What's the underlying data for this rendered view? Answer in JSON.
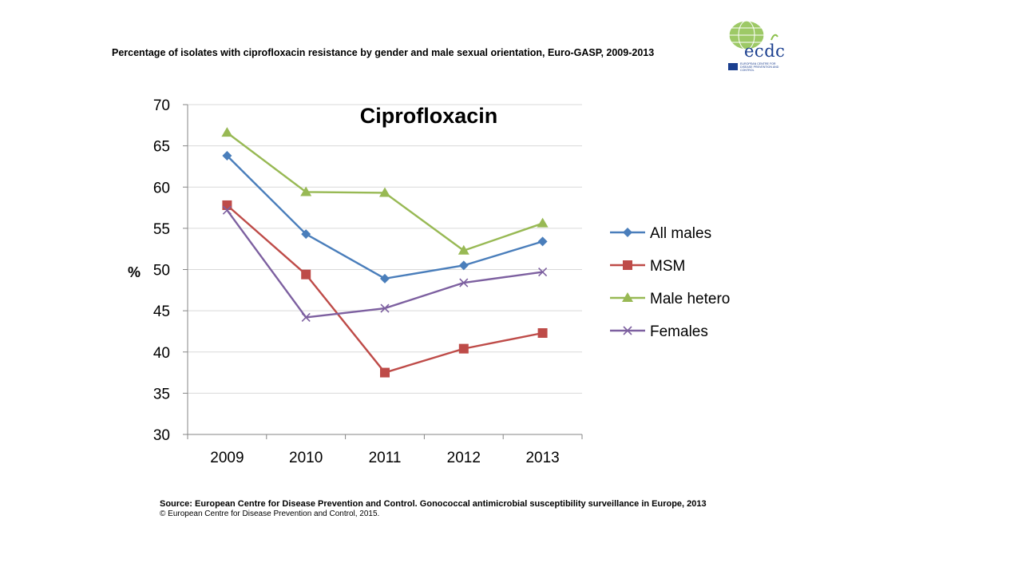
{
  "slide": {
    "title": "Percentage of isolates with ciprofloxacin  resistance by gender and male sexual orientation, Euro-GASP,  2009-2013",
    "logo_text": "ecdc",
    "logo_subtext": "European Centre for Disease Prevention and Control",
    "source_line1": "Source: European Centre for Disease Prevention and Control.  Gonococcal antimicrobial susceptibility surveillance in Europe, 2013",
    "source_line2": "© European Centre for Disease Prevention and Control, 2015."
  },
  "colors": {
    "all_males": "#4a7ebb",
    "msm": "#be4b48",
    "male_hetero": "#98b954",
    "females": "#7d60a0",
    "grid": "#d9d9d9",
    "axis": "#868686",
    "logo": "#1b3f8f",
    "logo_globe": "#8cc04b"
  },
  "chart_data": {
    "type": "line",
    "title": "Ciprofloxacin",
    "xlabel": "",
    "ylabel": "%",
    "categories": [
      "2009",
      "2010",
      "2011",
      "2012",
      "2013"
    ],
    "ylim": [
      30,
      70
    ],
    "yticks": [
      30,
      35,
      40,
      45,
      50,
      55,
      60,
      65,
      70
    ],
    "grid": true,
    "legend_position": "right",
    "series": [
      {
        "name": "All males",
        "marker": "diamond",
        "color_key": "all_males",
        "values": [
          63.8,
          54.3,
          48.9,
          50.5,
          53.4
        ]
      },
      {
        "name": "MSM",
        "marker": "square",
        "color_key": "msm",
        "values": [
          57.8,
          49.4,
          37.5,
          40.4,
          42.3
        ]
      },
      {
        "name": "Male hetero",
        "marker": "triangle",
        "color_key": "male_hetero",
        "values": [
          66.6,
          59.4,
          59.3,
          52.3,
          55.6
        ]
      },
      {
        "name": "Females",
        "marker": "x",
        "color_key": "females",
        "values": [
          57.2,
          44.2,
          45.3,
          48.4,
          49.7
        ]
      }
    ]
  }
}
